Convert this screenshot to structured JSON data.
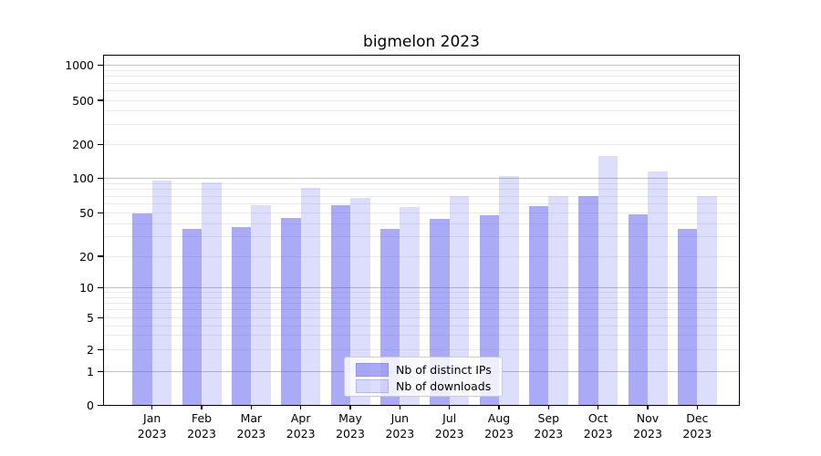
{
  "title": "bigmelon 2023",
  "chart_data": {
    "type": "bar",
    "title": "bigmelon 2023",
    "categories": [
      "Jan 2023",
      "Feb 2023",
      "Mar 2023",
      "Apr 2023",
      "May 2023",
      "Jun 2023",
      "Jul 2023",
      "Aug 2023",
      "Sep 2023",
      "Oct 2023",
      "Nov 2023",
      "Dec 2023"
    ],
    "series": [
      {
        "name": "Nb of distinct IPs",
        "color": "rgba(85,85,238,0.5)",
        "values": [
          50,
          36,
          37,
          45,
          58,
          36,
          44,
          48,
          57,
          70,
          49,
          36
        ]
      },
      {
        "name": "Nb of downloads",
        "color": "rgba(85,85,238,0.2)",
        "values": [
          95,
          92,
          58,
          82,
          67,
          56,
          70,
          105,
          70,
          158,
          115,
          70
        ]
      }
    ],
    "yaxis": {
      "scale": "symlog",
      "ticks": [
        0,
        1,
        2,
        5,
        10,
        20,
        50,
        100,
        200,
        500,
        1000
      ],
      "major_gridlines": [
        1,
        10,
        100,
        1000
      ]
    },
    "xlabel": "",
    "ylabel": "",
    "grid": "both",
    "legend_position": "lower center"
  },
  "colors": {
    "bar_distinct_ips": "rgba(85,85,238,0.5)",
    "bar_downloads": "rgba(85,85,238,0.2)",
    "major_grid": "#c2c2c2",
    "minor_grid": "#ebebeb",
    "spine": "#000000",
    "background": "#ffffff"
  }
}
